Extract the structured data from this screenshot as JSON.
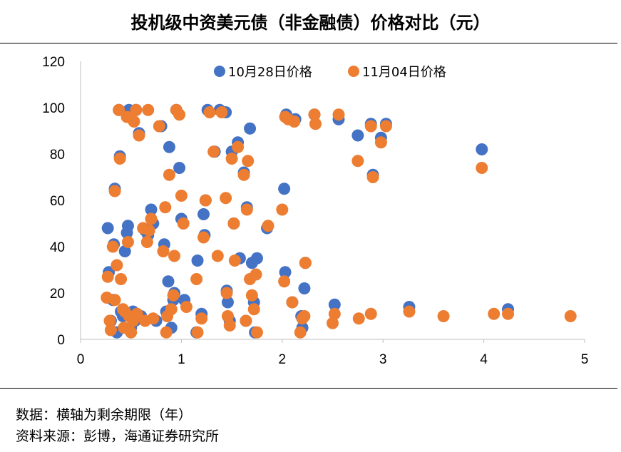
{
  "title": "投机级中资美元债（非金融债）价格对比（元）",
  "notes": {
    "data_note": "数据：横轴为剩余期限（年）",
    "source": "资料来源：彭博，海通证券研究所"
  },
  "chart_data": {
    "type": "scatter",
    "title": "投机级中资美元债（非金融债）价格对比（元）",
    "xlabel": "",
    "ylabel": "",
    "xlim": [
      0,
      5
    ],
    "ylim": [
      0,
      120
    ],
    "xticks": [
      0,
      1,
      2,
      3,
      4,
      5
    ],
    "yticks": [
      0,
      20,
      40,
      60,
      80,
      100,
      120
    ],
    "grid": false,
    "legend": "top-center",
    "series": [
      {
        "name": "10月28日价格",
        "color": "#4472C4",
        "points": [
          [
            0.27,
            48
          ],
          [
            0.28,
            29
          ],
          [
            0.3,
            8
          ],
          [
            0.32,
            17
          ],
          [
            0.33,
            41
          ],
          [
            0.34,
            65
          ],
          [
            0.36,
            3
          ],
          [
            0.38,
            99
          ],
          [
            0.39,
            79
          ],
          [
            0.4,
            12
          ],
          [
            0.42,
            10
          ],
          [
            0.44,
            38
          ],
          [
            0.46,
            46
          ],
          [
            0.47,
            49
          ],
          [
            0.48,
            99
          ],
          [
            0.5,
            5
          ],
          [
            0.52,
            12
          ],
          [
            0.54,
            8
          ],
          [
            0.55,
            99
          ],
          [
            0.58,
            89
          ],
          [
            0.6,
            10
          ],
          [
            0.64,
            47
          ],
          [
            0.67,
            45
          ],
          [
            0.7,
            56
          ],
          [
            0.72,
            50
          ],
          [
            0.75,
            8
          ],
          [
            0.8,
            92
          ],
          [
            0.83,
            41
          ],
          [
            0.85,
            12
          ],
          [
            0.87,
            25
          ],
          [
            0.88,
            83
          ],
          [
            0.9,
            5
          ],
          [
            0.92,
            17
          ],
          [
            0.93,
            20
          ],
          [
            0.95,
            99
          ],
          [
            0.98,
            74
          ],
          [
            1.0,
            52
          ],
          [
            1.03,
            17
          ],
          [
            1.15,
            3
          ],
          [
            1.16,
            34
          ],
          [
            1.2,
            11
          ],
          [
            1.22,
            54
          ],
          [
            1.23,
            45
          ],
          [
            1.24,
            60
          ],
          [
            1.26,
            99
          ],
          [
            1.33,
            81
          ],
          [
            1.38,
            99
          ],
          [
            1.44,
            98
          ],
          [
            1.45,
            21
          ],
          [
            1.46,
            16
          ],
          [
            1.48,
            8
          ],
          [
            1.5,
            81
          ],
          [
            1.52,
            50
          ],
          [
            1.56,
            85
          ],
          [
            1.58,
            35
          ],
          [
            1.62,
            72
          ],
          [
            1.64,
            8
          ],
          [
            1.65,
            57
          ],
          [
            1.68,
            91
          ],
          [
            1.7,
            33
          ],
          [
            1.72,
            16
          ],
          [
            1.73,
            3
          ],
          [
            1.75,
            35
          ],
          [
            1.85,
            48
          ],
          [
            2.02,
            65
          ],
          [
            2.03,
            29
          ],
          [
            2.04,
            97
          ],
          [
            2.1,
            16
          ],
          [
            2.13,
            95
          ],
          [
            2.19,
            10
          ],
          [
            2.2,
            5
          ],
          [
            2.22,
            22
          ],
          [
            2.23,
            33
          ],
          [
            2.32,
            97
          ],
          [
            2.52,
            15
          ],
          [
            2.56,
            95
          ],
          [
            2.75,
            88
          ],
          [
            2.88,
            93
          ],
          [
            2.9,
            71
          ],
          [
            2.98,
            87
          ],
          [
            3.03,
            93
          ],
          [
            3.26,
            14
          ],
          [
            3.98,
            82
          ],
          [
            4.24,
            13
          ]
        ]
      },
      {
        "name": "11月04日价格",
        "color": "#ED7D31",
        "points": [
          [
            0.26,
            18
          ],
          [
            0.27,
            27
          ],
          [
            0.29,
            8
          ],
          [
            0.3,
            4
          ],
          [
            0.32,
            40
          ],
          [
            0.34,
            17
          ],
          [
            0.34,
            64
          ],
          [
            0.36,
            32
          ],
          [
            0.38,
            99
          ],
          [
            0.39,
            78
          ],
          [
            0.4,
            26
          ],
          [
            0.42,
            13
          ],
          [
            0.43,
            5
          ],
          [
            0.44,
            12
          ],
          [
            0.46,
            96
          ],
          [
            0.47,
            42
          ],
          [
            0.48,
            10
          ],
          [
            0.5,
            3
          ],
          [
            0.52,
            8
          ],
          [
            0.53,
            94
          ],
          [
            0.55,
            99
          ],
          [
            0.56,
            11
          ],
          [
            0.58,
            88
          ],
          [
            0.62,
            48
          ],
          [
            0.64,
            8
          ],
          [
            0.66,
            42
          ],
          [
            0.67,
            99
          ],
          [
            0.68,
            47
          ],
          [
            0.7,
            52
          ],
          [
            0.72,
            9
          ],
          [
            0.78,
            92
          ],
          [
            0.82,
            38
          ],
          [
            0.84,
            57
          ],
          [
            0.85,
            3
          ],
          [
            0.86,
            10
          ],
          [
            0.88,
            71
          ],
          [
            0.9,
            13
          ],
          [
            0.92,
            19
          ],
          [
            0.93,
            36
          ],
          [
            0.95,
            99
          ],
          [
            0.98,
            97
          ],
          [
            1.0,
            62
          ],
          [
            1.02,
            50
          ],
          [
            1.05,
            14
          ],
          [
            1.15,
            26
          ],
          [
            1.16,
            3
          ],
          [
            1.2,
            9
          ],
          [
            1.22,
            44
          ],
          [
            1.24,
            60
          ],
          [
            1.28,
            98
          ],
          [
            1.32,
            81
          ],
          [
            1.36,
            36
          ],
          [
            1.4,
            98
          ],
          [
            1.44,
            61
          ],
          [
            1.45,
            20
          ],
          [
            1.46,
            10
          ],
          [
            1.48,
            6
          ],
          [
            1.5,
            78
          ],
          [
            1.52,
            50
          ],
          [
            1.53,
            34
          ],
          [
            1.56,
            83
          ],
          [
            1.62,
            71
          ],
          [
            1.64,
            8
          ],
          [
            1.65,
            56
          ],
          [
            1.66,
            77
          ],
          [
            1.68,
            26
          ],
          [
            1.7,
            19
          ],
          [
            1.72,
            13
          ],
          [
            1.74,
            28
          ],
          [
            1.75,
            3
          ],
          [
            1.86,
            49
          ],
          [
            2.0,
            56
          ],
          [
            2.02,
            25
          ],
          [
            2.03,
            96
          ],
          [
            2.06,
            95
          ],
          [
            2.1,
            16
          ],
          [
            2.12,
            94
          ],
          [
            2.18,
            3
          ],
          [
            2.2,
            9
          ],
          [
            2.22,
            10
          ],
          [
            2.23,
            33
          ],
          [
            2.32,
            97
          ],
          [
            2.33,
            93
          ],
          [
            2.5,
            7
          ],
          [
            2.52,
            11
          ],
          [
            2.56,
            97
          ],
          [
            2.75,
            77
          ],
          [
            2.76,
            9
          ],
          [
            2.88,
            11
          ],
          [
            2.88,
            92
          ],
          [
            2.9,
            70
          ],
          [
            2.98,
            85
          ],
          [
            3.03,
            92
          ],
          [
            3.26,
            12
          ],
          [
            3.6,
            10
          ],
          [
            3.98,
            74
          ],
          [
            4.1,
            11
          ],
          [
            4.24,
            11
          ],
          [
            4.86,
            10
          ]
        ]
      }
    ]
  }
}
